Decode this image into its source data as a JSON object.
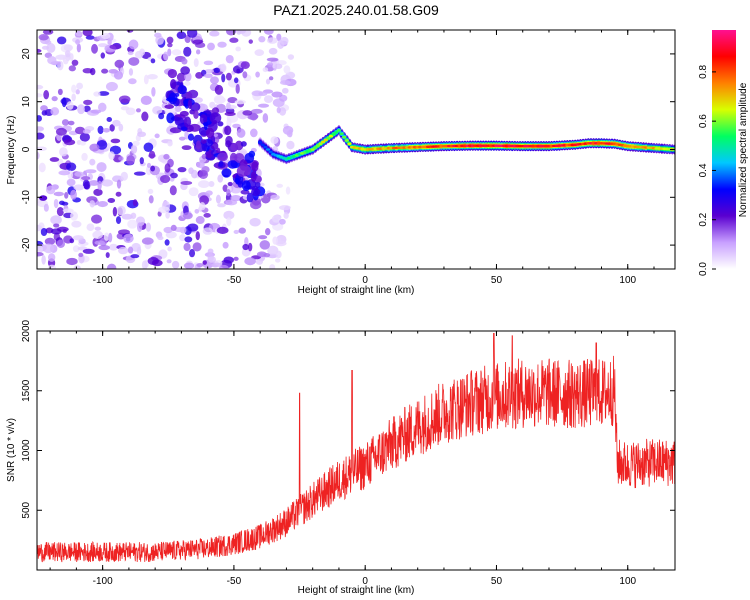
{
  "title": "PAZ1.2025.240.01.58.G09",
  "chart_data": [
    {
      "type": "heatmap",
      "xlabel": "Height of straight line (km)",
      "ylabel": "Frequency (Hz)",
      "xlim": [
        -125,
        118
      ],
      "ylim": [
        -25,
        25
      ],
      "xticks": [
        -100,
        -50,
        0,
        50,
        100
      ],
      "yticks": [
        -20,
        -10,
        0,
        10,
        20
      ],
      "colorbar": {
        "label": "Normalized spectral amplitude",
        "range": [
          0,
          0.97
        ],
        "ticks": [
          0.0,
          0.2,
          0.4,
          0.6,
          0.8
        ],
        "colormap": [
          "#ffffff",
          "#c8a0ff",
          "#5a00d0",
          "#0000ff",
          "#00c8ff",
          "#00ff60",
          "#d8ff00",
          "#ff8000",
          "#ff0000",
          "#ff1090"
        ]
      },
      "ridge": {
        "x": [
          -40,
          -35,
          -30,
          -25,
          -20,
          -15,
          -10,
          -5,
          0,
          10,
          20,
          30,
          40,
          50,
          60,
          70,
          80,
          85,
          90,
          95,
          100,
          105,
          110,
          118
        ],
        "freq": [
          1.5,
          -1,
          -2,
          -1,
          0,
          2,
          4,
          0.5,
          0,
          0.3,
          0.5,
          0.7,
          0.8,
          0.8,
          0.7,
          0.7,
          1.0,
          1.3,
          1.3,
          1.2,
          0.7,
          0.5,
          0.3,
          0.0
        ],
        "amplitude": [
          0.35,
          0.45,
          0.55,
          0.6,
          0.65,
          0.7,
          0.6,
          0.7,
          0.75,
          0.8,
          0.85,
          0.9,
          0.95,
          0.95,
          0.95,
          0.93,
          0.9,
          0.92,
          0.95,
          0.9,
          0.85,
          0.8,
          0.75,
          0.7
        ]
      },
      "scatter_region": {
        "x_range": [
          -125,
          -28
        ],
        "freq_range": [
          -25,
          25
        ],
        "amplitude_range": [
          0.02,
          0.3
        ]
      }
    },
    {
      "type": "line",
      "xlabel": "Height of straight line (km)",
      "ylabel": "SNR (10 * v/v)",
      "xlim": [
        -125,
        118
      ],
      "ylim": [
        0,
        2000
      ],
      "xticks": [
        -100,
        -50,
        0,
        50,
        100
      ],
      "yticks": [
        500,
        1000,
        1500,
        2000
      ],
      "color": "#ee2222",
      "trend": {
        "x": [
          -125,
          -100,
          -80,
          -60,
          -50,
          -40,
          -30,
          -20,
          -10,
          0,
          10,
          20,
          30,
          40,
          50,
          60,
          70,
          80,
          90,
          95,
          96,
          100,
          110,
          118
        ],
        "y": [
          150,
          150,
          150,
          180,
          220,
          280,
          400,
          580,
          750,
          870,
          1050,
          1200,
          1320,
          1400,
          1450,
          1480,
          1480,
          1470,
          1480,
          1500,
          900,
          880,
          900,
          900
        ]
      },
      "spikes": [
        {
          "x": -25,
          "y": 1480
        },
        {
          "x": -5,
          "y": 1670
        },
        {
          "x": 49,
          "y": 1980
        },
        {
          "x": 56,
          "y": 1960
        },
        {
          "x": 88,
          "y": 1900
        }
      ]
    }
  ]
}
